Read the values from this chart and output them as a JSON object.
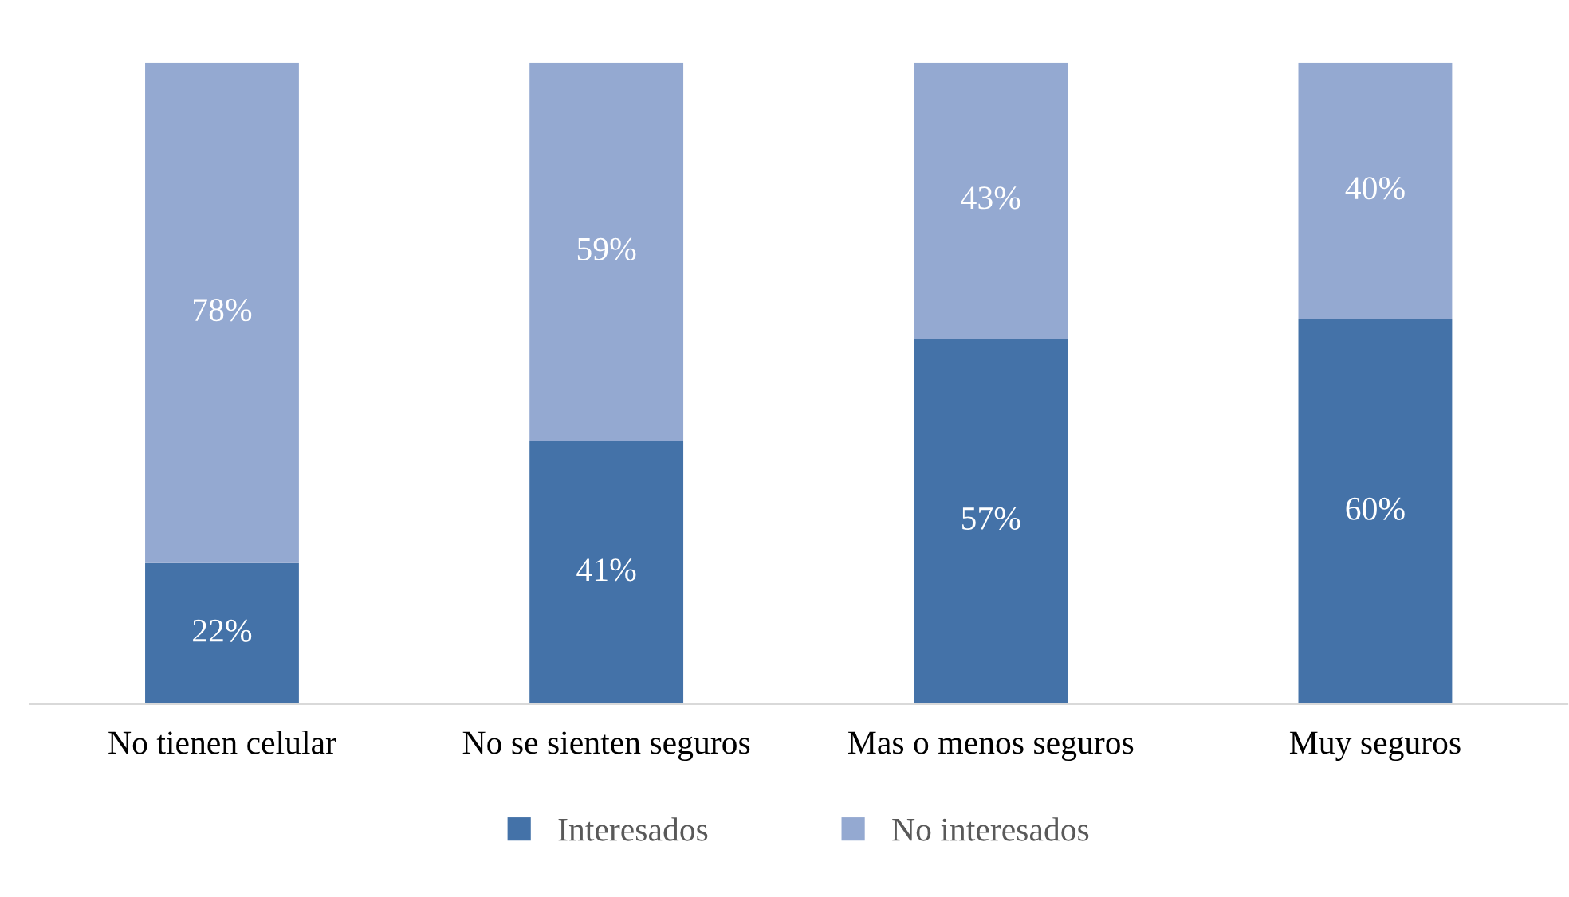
{
  "chart_data": {
    "type": "bar",
    "stacked": true,
    "categories": [
      "No tienen celular",
      "No se sienten seguros",
      "Mas o menos seguros",
      "Muy seguros"
    ],
    "series": [
      {
        "name": "Interesados",
        "color": "#4472a8",
        "values": [
          22,
          41,
          57,
          60
        ],
        "value_labels": [
          "22%",
          "41%",
          "57%",
          "60%"
        ]
      },
      {
        "name": "No interesados",
        "color": "#94a9d1",
        "values": [
          78,
          59,
          43,
          40
        ],
        "value_labels": [
          "78%",
          "59%",
          "43%",
          "40%"
        ]
      }
    ],
    "ylim": [
      0,
      100
    ],
    "tick_labels": "x",
    "grid": false,
    "legend": "bottom"
  }
}
